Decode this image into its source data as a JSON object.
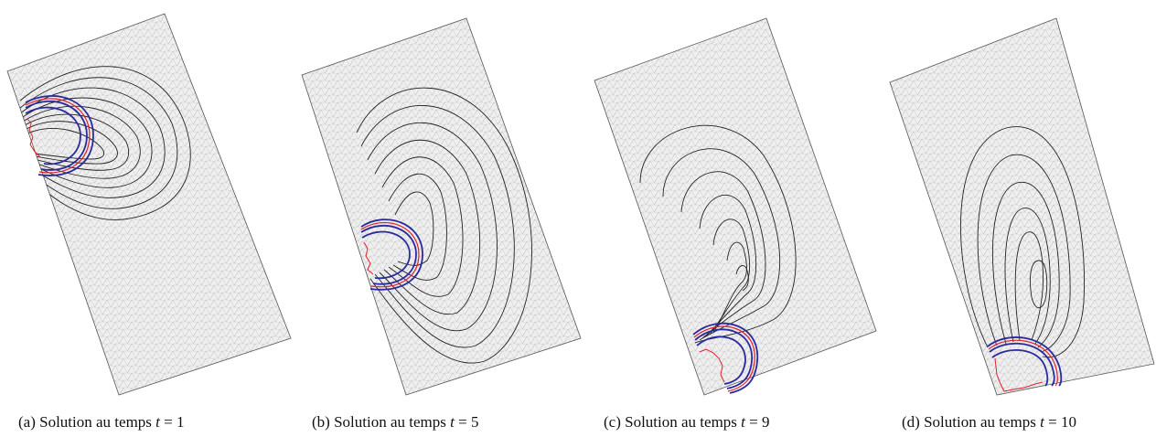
{
  "figure": {
    "panels": [
      {
        "label": "(a)",
        "caption_text": "Solution au temps",
        "var": "t",
        "eq": "=",
        "value": "1"
      },
      {
        "label": "(b)",
        "caption_text": "Solution au temps",
        "var": "t",
        "eq": "=",
        "value": "5"
      },
      {
        "label": "(c)",
        "caption_text": "Solution au temps",
        "var": "t",
        "eq": "=",
        "value": "9"
      },
      {
        "label": "(d)",
        "caption_text": "Solution au temps",
        "var": "t",
        "eq": "=",
        "value": "10"
      }
    ],
    "colors": {
      "mesh_fill": "#eeeeee",
      "mesh_stroke": "#b5b5b5",
      "contour": "#222222",
      "front_red": "#e0202a",
      "front_blue": "#2a2aa0"
    }
  }
}
